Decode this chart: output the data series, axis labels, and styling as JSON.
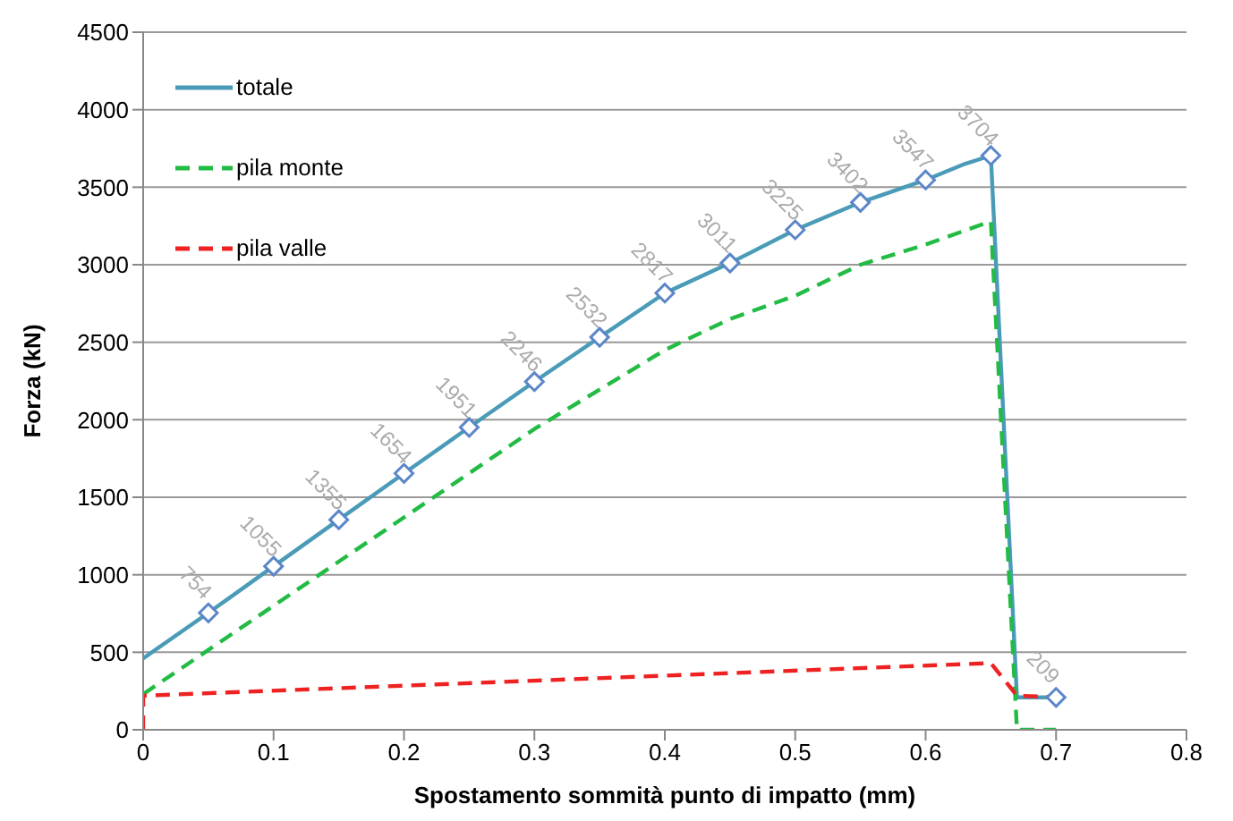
{
  "chart_data": {
    "type": "line",
    "xlabel": "Spostamento sommità punto di impatto (mm)",
    "ylabel": "Forza (kN)",
    "xlim": [
      0,
      0.8
    ],
    "xticks": [
      0,
      0.1,
      0.2,
      0.3,
      0.4,
      0.5,
      0.6,
      0.7,
      0.8
    ],
    "ylim": [
      0,
      4500
    ],
    "yticks": [
      0,
      500,
      1000,
      1500,
      2000,
      2500,
      3000,
      3500,
      4000,
      4500
    ],
    "grid": "y",
    "legend": "top left",
    "series": [
      {
        "name": "totale",
        "color": "#4a9bb8",
        "line_style": "solid",
        "marker": "diamond",
        "x": [
          0,
          0.05,
          0.1,
          0.15,
          0.2,
          0.25,
          0.3,
          0.35,
          0.4,
          0.45,
          0.5,
          0.55,
          0.6,
          0.63,
          0.65,
          0.67,
          0.7
        ],
        "values": [
          460,
          754,
          1055,
          1355,
          1654,
          1951,
          2246,
          2532,
          2817,
          3011,
          3225,
          3402,
          3547,
          3650,
          3704,
          209,
          209
        ],
        "value_labels": [
          null,
          "754",
          "1055",
          "1355",
          "1654",
          "1951",
          "2246",
          "2532",
          "2817",
          "3011",
          "3225",
          "3402",
          "3547",
          null,
          "3704",
          null,
          "209"
        ]
      },
      {
        "name": "pila monte",
        "color": "#22bb44",
        "line_style": "dashed",
        "marker": "none",
        "x": [
          0,
          0.1,
          0.2,
          0.3,
          0.4,
          0.45,
          0.5,
          0.55,
          0.6,
          0.65,
          0.67,
          0.7
        ],
        "values": [
          230,
          800,
          1370,
          1940,
          2450,
          2650,
          2800,
          3000,
          3130,
          3280,
          0,
          0
        ]
      },
      {
        "name": "pila valle",
        "color": "#ee2222",
        "line_style": "dashed",
        "marker": "none",
        "x": [
          0,
          0,
          0.65,
          0.67,
          0.7
        ],
        "values": [
          0,
          220,
          430,
          220,
          210
        ]
      }
    ]
  }
}
